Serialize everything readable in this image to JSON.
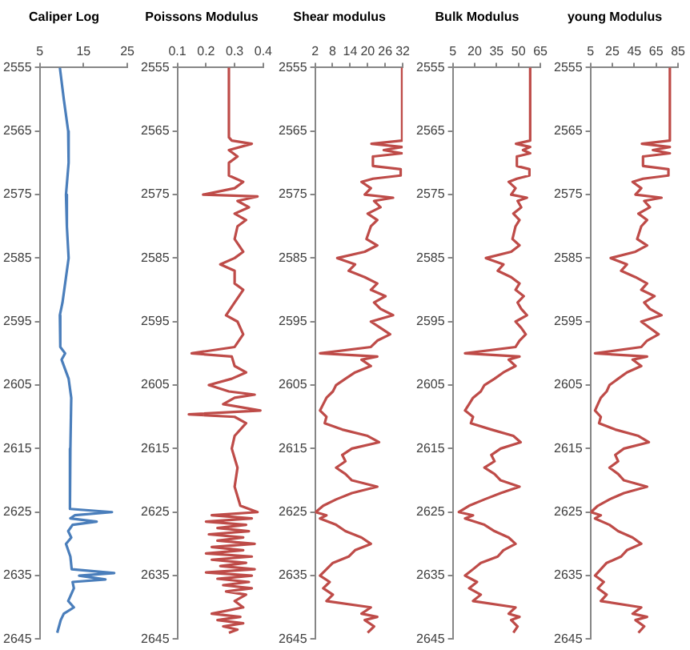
{
  "chart_data": [
    {
      "type": "line",
      "title": "Caliper Log",
      "orientation": "horizontal",
      "color": "#4a7ebb",
      "marker": "none",
      "grid": false,
      "xlim": [
        5,
        25
      ],
      "xticks": [
        5,
        15,
        25
      ],
      "ylim": [
        2645,
        2555
      ],
      "yticks": [
        2555,
        2565,
        2575,
        2585,
        2595,
        2605,
        2615,
        2625,
        2635,
        2645
      ],
      "x": [
        2555,
        2560,
        2565,
        2570,
        2575,
        2580,
        2585,
        2588,
        2592,
        2594,
        2599,
        2600,
        2601,
        2604,
        2607,
        2615,
        2620,
        2624.5,
        2625,
        2625.5,
        2626,
        2626.5,
        2627,
        2628,
        2629,
        2630,
        2632,
        2634,
        2634.6,
        2635,
        2635.6,
        2636,
        2637,
        2639,
        2640,
        2641,
        2642,
        2644
      ],
      "values": [
        9.6,
        10.5,
        11.5,
        11.6,
        11.0,
        11.2,
        11.6,
        11.0,
        10.2,
        9.6,
        9.7,
        10.8,
        10.0,
        11.6,
        12.2,
        12.0,
        11.8,
        12.0,
        21.5,
        13,
        12,
        18,
        12.5,
        11.5,
        12.2,
        11.0,
        12.0,
        12.3,
        22,
        14,
        20,
        12.5,
        12.8,
        11.5,
        12.8,
        10.5,
        9.8,
        9.0
      ]
    },
    {
      "type": "line",
      "title": "Poissons Modulus",
      "orientation": "horizontal",
      "color": "#be4b48",
      "marker": "none",
      "grid": false,
      "xlim": [
        0.1,
        0.4
      ],
      "xticks": [
        0.1,
        0.2,
        0.3,
        0.4
      ],
      "ylim": [
        2645,
        2555
      ],
      "yticks": [
        2555,
        2565,
        2575,
        2585,
        2595,
        2605,
        2615,
        2625,
        2635,
        2645
      ],
      "x": [
        2555,
        2566,
        2566.5,
        2567,
        2568,
        2569,
        2570,
        2572,
        2573,
        2574,
        2575,
        2575.3,
        2576,
        2577,
        2578,
        2579,
        2580,
        2582,
        2584,
        2585,
        2586,
        2587,
        2589,
        2590,
        2592,
        2594,
        2595,
        2597,
        2599,
        2600,
        2600.5,
        2602,
        2603,
        2604,
        2605,
        2606,
        2606.5,
        2607,
        2608,
        2609,
        2609.6,
        2610,
        2611,
        2613,
        2615,
        2618,
        2621,
        2624,
        2625,
        2625.5,
        2626,
        2626.5,
        2627,
        2627.5,
        2628,
        2628.5,
        2629,
        2629.5,
        2630,
        2630.5,
        2631,
        2631.5,
        2632,
        2632.5,
        2633,
        2633.5,
        2634,
        2634.5,
        2635,
        2635.5,
        2636,
        2636.5,
        2637,
        2637.5,
        2638,
        2639,
        2640,
        2641,
        2641.5,
        2642,
        2642.5,
        2643,
        2643.5,
        2644
      ],
      "values": [
        0.28,
        0.28,
        0.29,
        0.36,
        0.28,
        0.31,
        0.28,
        0.28,
        0.33,
        0.3,
        0.19,
        0.38,
        0.31,
        0.35,
        0.3,
        0.34,
        0.31,
        0.3,
        0.33,
        0.3,
        0.25,
        0.3,
        0.3,
        0.33,
        0.3,
        0.27,
        0.31,
        0.33,
        0.3,
        0.15,
        0.29,
        0.3,
        0.34,
        0.29,
        0.21,
        0.28,
        0.37,
        0.3,
        0.26,
        0.39,
        0.14,
        0.3,
        0.34,
        0.3,
        0.29,
        0.31,
        0.3,
        0.32,
        0.38,
        0.22,
        0.36,
        0.2,
        0.34,
        0.24,
        0.35,
        0.21,
        0.33,
        0.24,
        0.37,
        0.22,
        0.33,
        0.2,
        0.36,
        0.22,
        0.34,
        0.25,
        0.37,
        0.2,
        0.36,
        0.24,
        0.35,
        0.26,
        0.36,
        0.27,
        0.34,
        0.3,
        0.33,
        0.22,
        0.32,
        0.24,
        0.33,
        0.26,
        0.31,
        0.28
      ]
    },
    {
      "type": "line",
      "title": "Shear modulus",
      "orientation": "horizontal",
      "color": "#be4b48",
      "marker": "none",
      "grid": false,
      "xlim": [
        2,
        32
      ],
      "xticks": [
        2,
        8,
        14,
        20,
        26,
        32
      ],
      "ylim": [
        2645,
        2555
      ],
      "yticks": [
        2555,
        2565,
        2575,
        2585,
        2595,
        2605,
        2615,
        2625,
        2635,
        2645
      ],
      "x": [
        2555,
        2566.5,
        2567,
        2567.5,
        2568,
        2568.5,
        2569,
        2570.5,
        2571,
        2572,
        2572.5,
        2573,
        2574,
        2575,
        2575.5,
        2576,
        2577,
        2578,
        2579,
        2580,
        2582,
        2583,
        2584,
        2585,
        2586,
        2587,
        2588,
        2589,
        2590,
        2591,
        2592,
        2593,
        2594,
        2595,
        2596,
        2597,
        2598,
        2599,
        2600,
        2600.5,
        2601,
        2602,
        2603,
        2604,
        2605,
        2606,
        2607,
        2608,
        2609,
        2610,
        2611,
        2612,
        2613,
        2614,
        2615,
        2616,
        2617,
        2618,
        2619,
        2620,
        2621,
        2622,
        2623,
        2624,
        2625,
        2625.5,
        2626,
        2627,
        2628,
        2629,
        2630,
        2631,
        2632,
        2633,
        2634,
        2635,
        2636,
        2637,
        2638,
        2639,
        2640,
        2641,
        2641.5,
        2642,
        2643,
        2644
      ],
      "values": [
        31.8,
        31.8,
        21.3,
        31.8,
        25.5,
        31.8,
        21.8,
        21.8,
        31.3,
        31.3,
        21.8,
        17.9,
        21.1,
        19.0,
        28.7,
        22.2,
        24.4,
        20.0,
        23.3,
        21.1,
        19.6,
        23.3,
        19.0,
        9.6,
        15.7,
        13.5,
        19.0,
        23.3,
        21.1,
        26.1,
        22.2,
        24.4,
        28.7,
        21.1,
        24.4,
        27.7,
        23.3,
        21.1,
        3.7,
        23.3,
        17.9,
        21.1,
        15.7,
        12.4,
        9.2,
        8.1,
        5.9,
        4.8,
        3.7,
        5.9,
        5.3,
        11.3,
        20.0,
        23.9,
        14.6,
        11.3,
        12.4,
        9.2,
        12.4,
        14.6,
        23.3,
        14.6,
        9.2,
        4.8,
        2.2,
        5.9,
        3.7,
        9.2,
        12.4,
        17.9,
        21.1,
        15.7,
        13.5,
        8.1,
        5.9,
        3.7,
        7.0,
        4.8,
        8.1,
        5.9,
        21.1,
        17.9,
        23.3,
        19.0,
        22.2,
        20.0
      ]
    },
    {
      "type": "line",
      "title": "Bulk Modulus",
      "orientation": "horizontal",
      "color": "#be4b48",
      "marker": "none",
      "grid": false,
      "xlim": [
        5,
        65
      ],
      "xticks": [
        5,
        20,
        35,
        50,
        65
      ],
      "ylim": [
        2645,
        2555
      ],
      "yticks": [
        2555,
        2565,
        2575,
        2585,
        2595,
        2605,
        2615,
        2625,
        2635,
        2645
      ],
      "x": [
        2555,
        2566.5,
        2567,
        2567.5,
        2568,
        2568.5,
        2569,
        2570.5,
        2571,
        2572,
        2572.5,
        2573,
        2574,
        2575,
        2575.5,
        2576,
        2577,
        2578,
        2579,
        2580,
        2582,
        2583,
        2584,
        2585,
        2586,
        2587,
        2588,
        2589,
        2590,
        2591,
        2592,
        2593,
        2594,
        2595,
        2596,
        2597,
        2598,
        2599,
        2600,
        2600.5,
        2601,
        2602,
        2603,
        2604,
        2605,
        2606,
        2607,
        2608,
        2609,
        2610,
        2611,
        2612,
        2613,
        2614,
        2615,
        2616,
        2617,
        2618,
        2619,
        2620,
        2621,
        2622,
        2623,
        2624,
        2625,
        2625.5,
        2626,
        2627,
        2628,
        2629,
        2630,
        2631,
        2632,
        2633,
        2634,
        2635,
        2636,
        2637,
        2638,
        2639,
        2640,
        2641,
        2641.5,
        2642,
        2643,
        2644
      ],
      "values": [
        58.0,
        58.0,
        48.3,
        58.0,
        53.1,
        58.0,
        48.9,
        48.9,
        57.5,
        57.5,
        48.9,
        43.3,
        48.0,
        45.0,
        55.8,
        49.4,
        51.9,
        46.5,
        50.7,
        48.0,
        45.9,
        50.7,
        45.0,
        27.7,
        39.7,
        35.8,
        45.0,
        50.7,
        48.0,
        53.6,
        49.4,
        51.9,
        55.8,
        48.0,
        51.9,
        55.0,
        50.7,
        48.0,
        13.4,
        50.7,
        43.3,
        48.0,
        39.7,
        33.6,
        26.7,
        24.2,
        18.9,
        16.2,
        13.4,
        18.9,
        17.4,
        31.4,
        46.5,
        51.5,
        37.8,
        31.4,
        33.6,
        26.7,
        33.6,
        37.8,
        50.7,
        37.8,
        26.7,
        16.2,
        9.2,
        18.9,
        13.4,
        26.7,
        33.6,
        43.3,
        48.0,
        39.7,
        35.8,
        24.2,
        18.9,
        13.4,
        21.6,
        16.2,
        24.2,
        18.9,
        48.0,
        43.3,
        50.7,
        45.0,
        49.4,
        46.5
      ]
    },
    {
      "type": "line",
      "title": "young Modulus",
      "orientation": "horizontal",
      "color": "#be4b48",
      "marker": "none",
      "grid": false,
      "xlim": [
        5,
        85
      ],
      "xticks": [
        5,
        25,
        45,
        65,
        85
      ],
      "ylim": [
        2645,
        2555
      ],
      "yticks": [
        2555,
        2565,
        2575,
        2585,
        2595,
        2605,
        2615,
        2625,
        2635,
        2645
      ],
      "x": [
        2555,
        2566.5,
        2567,
        2567.5,
        2568,
        2568.5,
        2569,
        2570.5,
        2571,
        2572,
        2572.5,
        2573,
        2574,
        2575,
        2575.5,
        2576,
        2577,
        2578,
        2579,
        2580,
        2582,
        2583,
        2584,
        2585,
        2586,
        2587,
        2588,
        2589,
        2590,
        2591,
        2592,
        2593,
        2594,
        2595,
        2596,
        2597,
        2598,
        2599,
        2600,
        2600.5,
        2601,
        2602,
        2603,
        2604,
        2605,
        2606,
        2607,
        2608,
        2609,
        2610,
        2611,
        2612,
        2613,
        2614,
        2615,
        2616,
        2617,
        2618,
        2619,
        2620,
        2621,
        2622,
        2623,
        2624,
        2625,
        2625.5,
        2626,
        2627,
        2628,
        2629,
        2630,
        2631,
        2632,
        2633,
        2634,
        2635,
        2636,
        2637,
        2638,
        2639,
        2640,
        2641,
        2641.5,
        2642,
        2643,
        2644
      ],
      "values": [
        77.5,
        77.5,
        52.0,
        77.5,
        62.0,
        77.5,
        53.0,
        53.0,
        76.2,
        76.2,
        53.0,
        43.5,
        51.4,
        46.1,
        69.9,
        54.1,
        59.3,
        48.8,
        56.7,
        51.4,
        47.7,
        56.7,
        46.1,
        23.5,
        38.3,
        33.0,
        46.1,
        56.7,
        51.4,
        63.5,
        54.1,
        59.3,
        69.9,
        51.4,
        59.3,
        67.2,
        56.7,
        51.4,
        9.2,
        56.7,
        43.5,
        51.4,
        38.3,
        30.3,
        22.4,
        19.8,
        14.5,
        11.8,
        9.2,
        14.5,
        12.9,
        27.7,
        48.8,
        58.3,
        35.6,
        27.7,
        30.3,
        22.4,
        30.3,
        35.6,
        56.7,
        35.6,
        22.4,
        11.8,
        5.5,
        14.5,
        9.2,
        22.4,
        30.3,
        43.5,
        51.4,
        38.3,
        33.0,
        19.8,
        14.5,
        9.2,
        17.2,
        11.8,
        19.8,
        14.5,
        51.4,
        43.5,
        56.7,
        46.1,
        54.1,
        48.8
      ]
    }
  ]
}
